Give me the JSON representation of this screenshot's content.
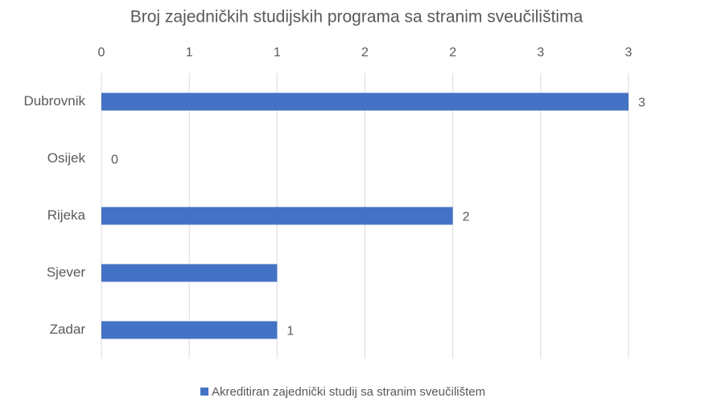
{
  "chart_data": {
    "type": "bar",
    "orientation": "horizontal",
    "title": "Broj zajedničkih studijskih programa sa stranim sveučilištima",
    "categories": [
      "Dubrovnik",
      "Osijek",
      "Rijeka",
      "Sjever",
      "Zadar"
    ],
    "series": [
      {
        "name": "Akreditiran zajednički studij sa stranim sveučilištem",
        "color": "#4472c4",
        "values": [
          3,
          0,
          2,
          1,
          1
        ],
        "value_labels": [
          "3",
          "0",
          "2",
          null,
          "1"
        ]
      }
    ],
    "xlim": [
      0,
      3
    ],
    "xticks": [
      0,
      {
        "value": 0.5,
        "label": "1"
      },
      1,
      {
        "value": 1.5,
        "label": "2"
      },
      2,
      {
        "value": 2.5,
        "label": "3"
      },
      3
    ],
    "grid": true,
    "legend": "bottom"
  }
}
